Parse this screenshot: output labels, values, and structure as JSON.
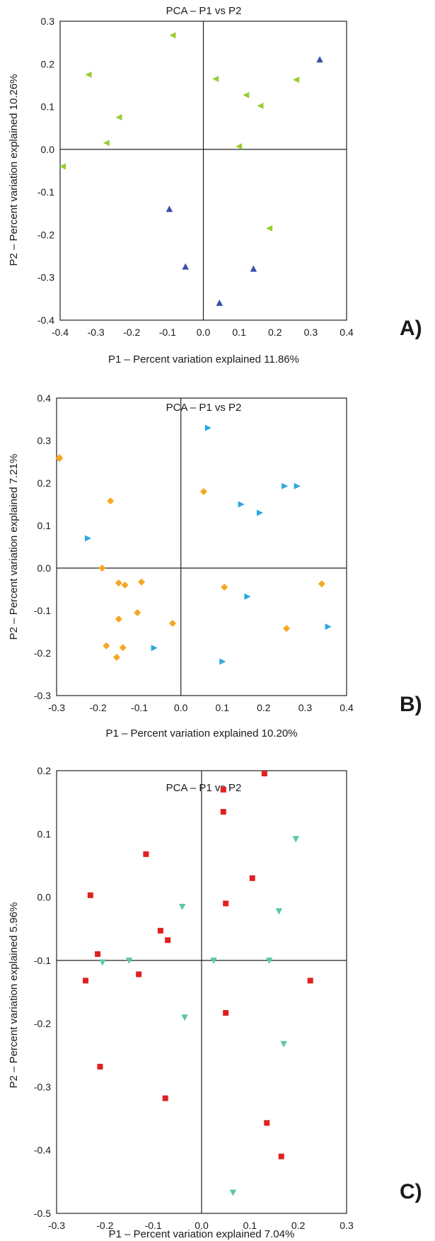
{
  "figure": {
    "panels": [
      "A)",
      "B)",
      "C)"
    ]
  },
  "chart_data": [
    {
      "type": "scatter",
      "panel": "A)",
      "title": "PCA – P1 vs P2",
      "xlabel": "P1 – Percent variation explained 11.86%",
      "ylabel": "P2 – Percent variation explained 10.26%",
      "xlim": [
        -0.4,
        0.4
      ],
      "ylim": [
        -0.4,
        0.3
      ],
      "xticks": [
        "-0.4",
        "-0.3",
        "-0.2",
        "-0.1",
        "0.0",
        "0.1",
        "0.2",
        "0.3",
        "0.4"
      ],
      "yticks": [
        "0.3",
        "0.2",
        "0.1",
        "0.0",
        "-0.1",
        "-0.2",
        "-0.3",
        "-0.4"
      ],
      "origin": [
        0,
        0
      ],
      "series": [
        {
          "marker": "triangle-left",
          "color": "#9ACD32",
          "points": [
            [
              -0.085,
              0.267
            ],
            [
              -0.32,
              0.175
            ],
            [
              -0.235,
              0.075
            ],
            [
              -0.27,
              0.015
            ],
            [
              -0.4,
              -0.04
            ],
            [
              0.035,
              0.165
            ],
            [
              0.12,
              0.127
            ],
            [
              0.16,
              0.102
            ],
            [
              0.26,
              0.163
            ],
            [
              0.1,
              0.007
            ],
            [
              0.185,
              -0.185
            ]
          ]
        },
        {
          "marker": "triangle-up",
          "color": "#3A4FA8",
          "points": [
            [
              0.325,
              0.21
            ],
            [
              -0.095,
              -0.14
            ],
            [
              -0.05,
              -0.275
            ],
            [
              0.14,
              -0.28
            ],
            [
              0.045,
              -0.36
            ]
          ]
        }
      ]
    },
    {
      "type": "scatter",
      "panel": "B)",
      "title": "PCA – P1 vs P2",
      "xlabel": "P1 – Percent variation explained 10.20%",
      "ylabel": "P2 – Percent variation explained 7.21%",
      "xlim": [
        -0.3,
        0.4
      ],
      "ylim": [
        -0.3,
        0.4
      ],
      "xticks": [
        "-0.3",
        "-0.2",
        "-0.1",
        "0.0",
        "0.1",
        "0.2",
        "0.3",
        "0.4"
      ],
      "yticks": [
        "0.4",
        "0.3",
        "0.2",
        "0.1",
        "0.0",
        "-0.1",
        "-0.2",
        "-0.3"
      ],
      "origin": [
        0,
        0
      ],
      "series": [
        {
          "marker": "diamond",
          "color": "#F5A623",
          "points": [
            [
              -0.3,
              0.258
            ],
            [
              -0.295,
              0.26
            ],
            [
              -0.17,
              0.158
            ],
            [
              0.055,
              0.18
            ],
            [
              -0.19,
              0.0
            ],
            [
              -0.15,
              -0.035
            ],
            [
              -0.135,
              -0.04
            ],
            [
              -0.095,
              -0.033
            ],
            [
              -0.105,
              -0.105
            ],
            [
              -0.15,
              -0.12
            ],
            [
              -0.02,
              -0.13
            ],
            [
              -0.18,
              -0.183
            ],
            [
              -0.14,
              -0.187
            ],
            [
              -0.155,
              -0.21
            ],
            [
              0.105,
              -0.045
            ],
            [
              0.34,
              -0.037
            ],
            [
              0.255,
              -0.142
            ]
          ]
        },
        {
          "marker": "triangle-right",
          "color": "#29A8E0",
          "points": [
            [
              0.065,
              0.33
            ],
            [
              0.145,
              0.15
            ],
            [
              0.19,
              0.13
            ],
            [
              0.25,
              0.193
            ],
            [
              0.28,
              0.193
            ],
            [
              -0.225,
              0.07
            ],
            [
              0.16,
              -0.067
            ],
            [
              0.355,
              -0.138
            ],
            [
              -0.065,
              -0.188
            ],
            [
              0.1,
              -0.22
            ]
          ]
        }
      ]
    },
    {
      "type": "scatter",
      "panel": "C)",
      "title": "PCA – P1 vs P2",
      "xlabel": "P1 – Percent variation explained 7.04%",
      "ylabel": "P2 – Percent variation explained 5.96%",
      "xlim": [
        -0.3,
        0.3
      ],
      "ylim": [
        -0.5,
        0.2
      ],
      "xticks": [
        "-0.3",
        "-0.2",
        "-0.1",
        "0.0",
        "0.1",
        "0.2",
        "0.3"
      ],
      "yticks": [
        "0.2",
        "0.1",
        "0.0",
        "-0.1",
        "-0.2",
        "-0.3",
        "-0.4",
        "-0.5"
      ],
      "origin": [
        0,
        -0.1
      ],
      "series": [
        {
          "marker": "square",
          "color": "#E02020",
          "points": [
            [
              0.13,
              0.2
            ],
            [
              0.045,
              0.17
            ],
            [
              0.045,
              0.135
            ],
            [
              -0.115,
              0.068
            ],
            [
              -0.23,
              0.003
            ],
            [
              0.105,
              0.03
            ],
            [
              0.05,
              -0.01
            ],
            [
              -0.085,
              -0.053
            ],
            [
              -0.07,
              -0.068
            ],
            [
              -0.215,
              -0.09
            ],
            [
              -0.24,
              -0.132
            ],
            [
              -0.13,
              -0.122
            ],
            [
              0.225,
              -0.132
            ],
            [
              0.05,
              -0.183
            ],
            [
              -0.21,
              -0.268
            ],
            [
              -0.075,
              -0.318
            ],
            [
              0.135,
              -0.357
            ],
            [
              0.165,
              -0.41
            ]
          ]
        },
        {
          "marker": "triangle-down",
          "color": "#5CC8A0",
          "points": [
            [
              0.195,
              0.092
            ],
            [
              -0.04,
              -0.015
            ],
            [
              0.16,
              -0.022
            ],
            [
              -0.205,
              -0.103
            ],
            [
              -0.15,
              -0.1
            ],
            [
              0.025,
              -0.1
            ],
            [
              0.14,
              -0.1
            ],
            [
              -0.035,
              -0.19
            ],
            [
              0.17,
              -0.232
            ],
            [
              0.065,
              -0.467
            ]
          ]
        }
      ]
    }
  ]
}
